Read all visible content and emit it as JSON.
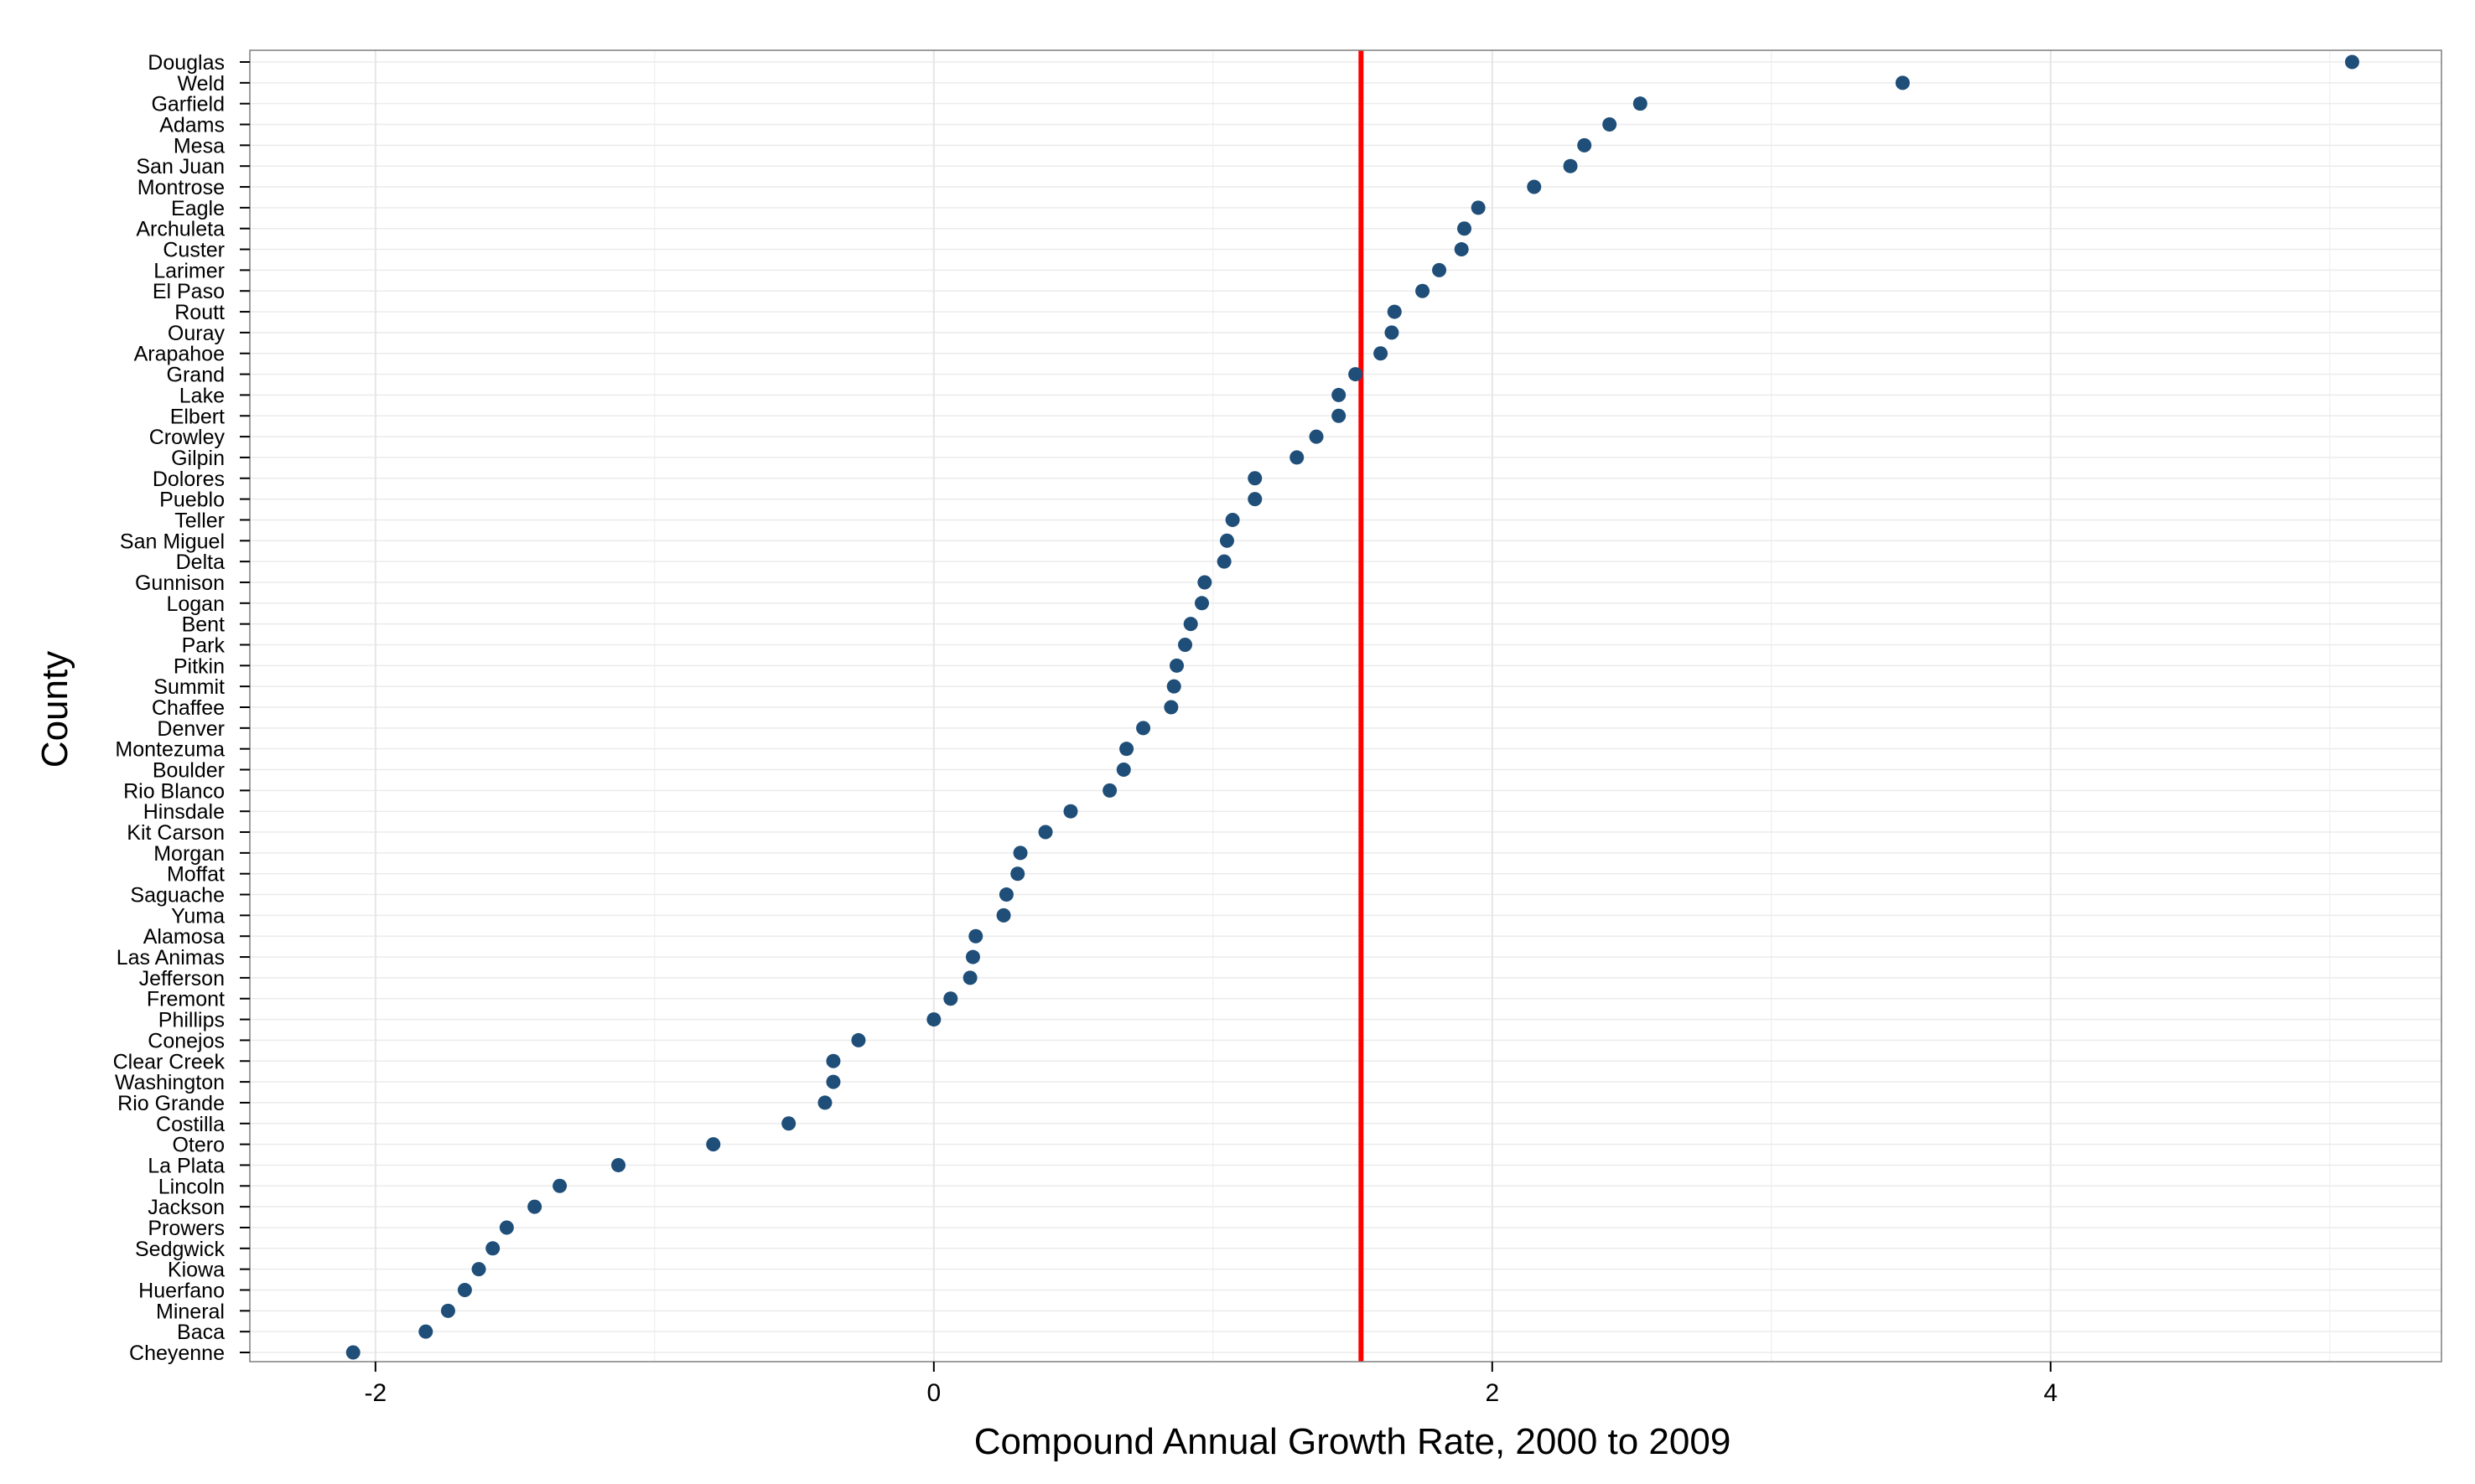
{
  "chart_data": {
    "type": "scatter",
    "title": "",
    "xlabel": "Compound Annual Growth Rate, 2000 to 2009",
    "ylabel": "County",
    "xlim": [
      -2.45,
      5.4
    ],
    "xticks": [
      -2,
      0,
      2,
      4
    ],
    "xtick_labels": [
      "-2",
      "0",
      "2",
      "4"
    ],
    "grid": true,
    "legend": "none",
    "reference_line": {
      "x": 1.53,
      "color": "#ff0000"
    },
    "point_color": "#1f4e79",
    "series": [
      {
        "categories": [
          "Douglas",
          "Weld",
          "Garfield",
          "Adams",
          "Mesa",
          "San Juan",
          "Montrose",
          "Eagle",
          "Archuleta",
          "Custer",
          "Larimer",
          "El Paso",
          "Routt",
          "Ouray",
          "Arapahoe",
          "Grand",
          "Lake",
          "Elbert",
          "Crowley",
          "Gilpin",
          "Dolores",
          "Pueblo",
          "Teller",
          "San Miguel",
          "Delta",
          "Gunnison",
          "Logan",
          "Bent",
          "Park",
          "Pitkin",
          "Summit",
          "Chaffee",
          "Denver",
          "Montezuma",
          "Boulder",
          "Rio Blanco",
          "Hinsdale",
          "Kit Carson",
          "Morgan",
          "Moffat",
          "Saguache",
          "Yuma",
          "Alamosa",
          "Las Animas",
          "Jefferson",
          "Fremont",
          "Phillips",
          "Conejos",
          "Clear Creek",
          "Washington",
          "Rio Grande",
          "Costilla",
          "Otero",
          "La Plata",
          "Lincoln",
          "Jackson",
          "Prowers",
          "Sedgwick",
          "Kiowa",
          "Huerfano",
          "Mineral",
          "Baca",
          "Cheyenne"
        ],
        "values": [
          5.08,
          3.47,
          2.53,
          2.42,
          2.33,
          2.28,
          2.15,
          1.95,
          1.9,
          1.89,
          1.81,
          1.75,
          1.65,
          1.64,
          1.6,
          1.51,
          1.45,
          1.45,
          1.37,
          1.3,
          1.15,
          1.15,
          1.07,
          1.05,
          1.04,
          0.97,
          0.96,
          0.92,
          0.9,
          0.87,
          0.86,
          0.85,
          0.75,
          0.69,
          0.68,
          0.63,
          0.49,
          0.4,
          0.31,
          0.3,
          0.26,
          0.25,
          0.15,
          0.14,
          0.13,
          0.06,
          0.0,
          -0.27,
          -0.36,
          -0.36,
          -0.39,
          -0.52,
          -0.79,
          -1.13,
          -1.34,
          -1.43,
          -1.53,
          -1.58,
          -1.63,
          -1.68,
          -1.74,
          -1.82,
          -2.08
        ]
      }
    ]
  }
}
